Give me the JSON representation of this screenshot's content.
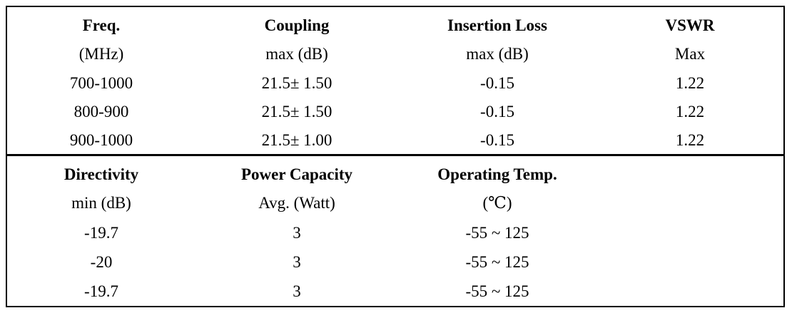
{
  "top_table": {
    "headers": [
      "Freq.",
      "Coupling",
      "Insertion Loss",
      "VSWR"
    ],
    "units": [
      "(MHz)",
      "max (dB)",
      "max (dB)",
      "Max"
    ],
    "rows": [
      [
        "700-1000",
        "21.5± 1.50",
        "-0.15",
        "1.22"
      ],
      [
        "800-900",
        "21.5± 1.50",
        "-0.15",
        "1.22"
      ],
      [
        "900-1000",
        "21.5± 1.00",
        "-0.15",
        "1.22"
      ]
    ]
  },
  "bottom_table": {
    "headers": [
      "Directivity",
      "Power Capacity",
      "Operating Temp."
    ],
    "units": [
      "min (dB)",
      "Avg. (Watt)",
      "(℃)"
    ],
    "rows": [
      [
        "-19.7",
        "3",
        "-55 ~ 125"
      ],
      [
        "-20",
        "3",
        "-55 ~ 125"
      ],
      [
        "-19.7",
        "3",
        "-55 ~ 125"
      ]
    ]
  }
}
